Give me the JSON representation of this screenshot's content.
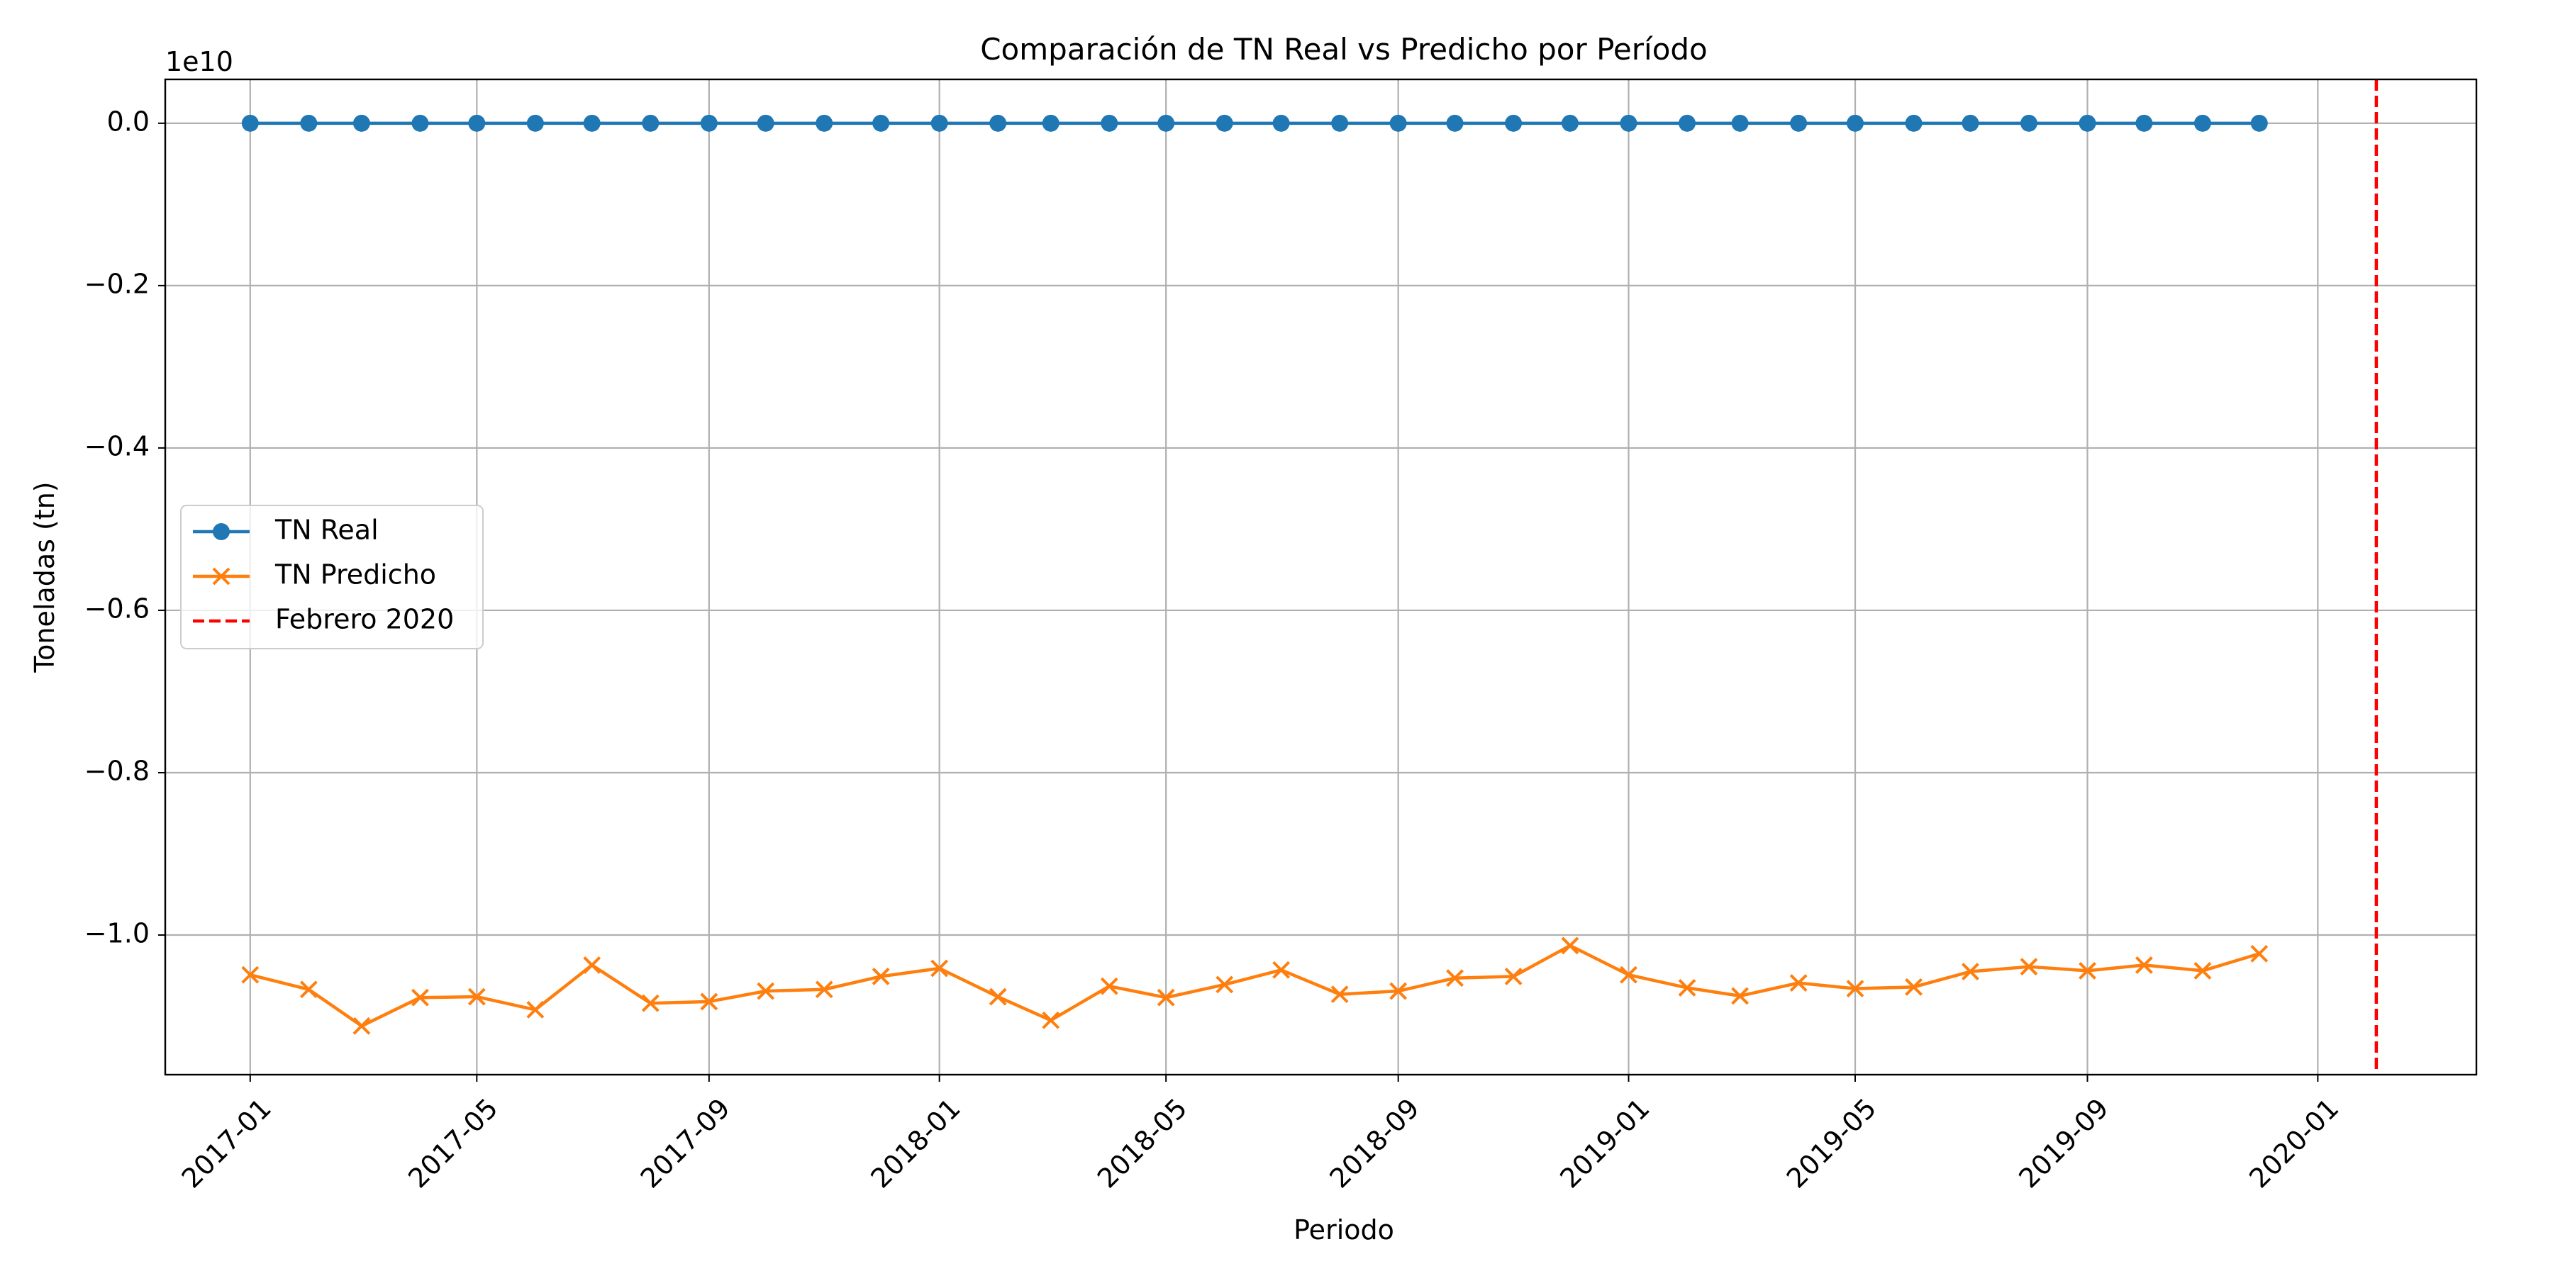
{
  "chart_data": {
    "type": "line",
    "title": "Comparación de TN Real vs Predicho por Período",
    "xlabel": "Periodo",
    "ylabel": "Toneladas (tn)",
    "y_offset_text": "1e10",
    "y_scale_factor": 10000000000.0,
    "ylim": [
      -11720000000.0,
      540000000.0
    ],
    "xlim": [
      "2016-11-17",
      "2020-03-25"
    ],
    "x_ticks": [
      "2017-01",
      "2017-05",
      "2017-09",
      "2018-01",
      "2018-05",
      "2018-09",
      "2019-01",
      "2019-05",
      "2019-09",
      "2020-01"
    ],
    "y_ticks": [
      0.0,
      -2000000000.0,
      -4000000000.0,
      -6000000000.0,
      -8000000000.0,
      -10000000000.0
    ],
    "y_tick_labels": [
      "0.0",
      "−0.2",
      "−0.4",
      "−0.6",
      "−0.8",
      "−1.0"
    ],
    "grid": true,
    "legend_position": "center-left",
    "x": [
      "2017-01",
      "2017-02",
      "2017-03",
      "2017-04",
      "2017-05",
      "2017-06",
      "2017-07",
      "2017-08",
      "2017-09",
      "2017-10",
      "2017-11",
      "2017-12",
      "2018-01",
      "2018-02",
      "2018-03",
      "2018-04",
      "2018-05",
      "2018-06",
      "2018-07",
      "2018-08",
      "2018-09",
      "2018-10",
      "2018-11",
      "2018-12",
      "2019-01",
      "2019-02",
      "2019-03",
      "2019-04",
      "2019-05",
      "2019-06",
      "2019-07",
      "2019-08",
      "2019-09",
      "2019-10",
      "2019-11",
      "2019-12"
    ],
    "series": [
      {
        "name": "TN Real",
        "color": "#1f77b4",
        "marker": "circle",
        "values": [
          0,
          0,
          0,
          0,
          0,
          0,
          0,
          0,
          0,
          0,
          0,
          0,
          0,
          0,
          0,
          0,
          0,
          0,
          0,
          0,
          0,
          0,
          0,
          0,
          0,
          0,
          0,
          0,
          0,
          0,
          0,
          0,
          0,
          0,
          0,
          0
        ]
      },
      {
        "name": "TN Predicho",
        "color": "#ff7f0e",
        "marker": "x",
        "values": [
          -10490000000.0,
          -10670000000.0,
          -11120000000.0,
          -10770000000.0,
          -10760000000.0,
          -10920000000.0,
          -10370000000.0,
          -10840000000.0,
          -10820000000.0,
          -10690000000.0,
          -10670000000.0,
          -10510000000.0,
          -10410000000.0,
          -10760000000.0,
          -11050000000.0,
          -10630000000.0,
          -10770000000.0,
          -10610000000.0,
          -10430000000.0,
          -10730000000.0,
          -10690000000.0,
          -10530000000.0,
          -10510000000.0,
          -10130000000.0,
          -10490000000.0,
          -10650000000.0,
          -10750000000.0,
          -10590000000.0,
          -10660000000.0,
          -10640000000.0,
          -10450000000.0,
          -10390000000.0,
          -10440000000.0,
          -10370000000.0,
          -10440000000.0,
          -10230000000.0
        ]
      }
    ],
    "vlines": [
      {
        "name": "Febrero 2020",
        "x": "2020-02",
        "color": "#ff0000",
        "style": "dashed"
      }
    ]
  }
}
